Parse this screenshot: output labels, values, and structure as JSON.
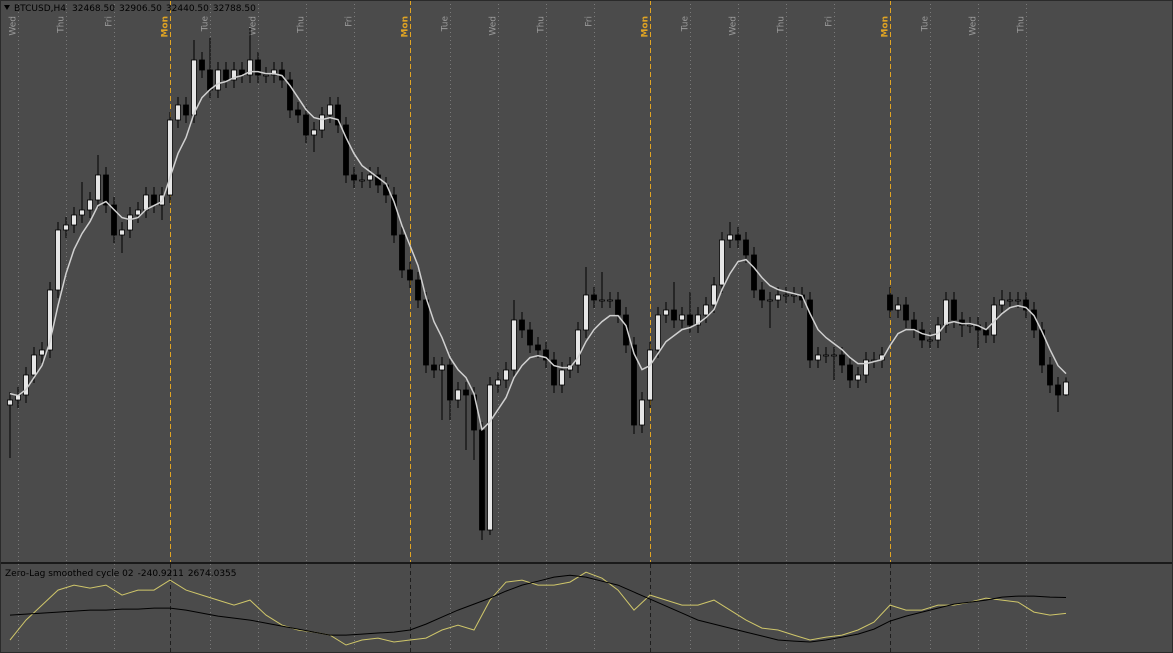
{
  "chart_data": [
    {
      "type": "candlestick",
      "title": "BTCUSD,H4",
      "ohlc_value_labels": [
        "32468.50",
        "32906.50",
        "32440.50",
        "32788.50"
      ],
      "up_color": "#e6e6e6",
      "down_color": "#000000",
      "ma_color": "#d0d0d0",
      "ylim": [
        28290,
        42340
      ],
      "xticks": [
        {
          "value": 1,
          "label": "Wed"
        },
        {
          "value": 7,
          "label": "Thu"
        },
        {
          "value": 13,
          "label": "Fri"
        },
        {
          "value": 20,
          "label": "Mon"
        },
        {
          "value": 25,
          "label": "Tue"
        },
        {
          "value": 31,
          "label": "Wed"
        },
        {
          "value": 37,
          "label": "Thu"
        },
        {
          "value": 43,
          "label": "Fri"
        },
        {
          "value": 50,
          "label": "Mon"
        },
        {
          "value": 55,
          "label": "Tue"
        },
        {
          "value": 61,
          "label": "Wed"
        },
        {
          "value": 67,
          "label": "Thu"
        },
        {
          "value": 73,
          "label": "Fri"
        },
        {
          "value": 80,
          "label": "Mon"
        },
        {
          "value": 85,
          "label": "Tue"
        },
        {
          "value": 91,
          "label": "Wed"
        },
        {
          "value": 97,
          "label": "Thu"
        },
        {
          "value": 103,
          "label": "Fri"
        },
        {
          "value": 110,
          "label": "Mon"
        },
        {
          "value": 115,
          "label": "Tue"
        },
        {
          "value": 121,
          "label": "Wed"
        },
        {
          "value": 127,
          "label": "Thu"
        }
      ],
      "week_start_label": "Mon",
      "week_start_color": "#e0a424",
      "grid_color": "#7a7a7a",
      "label_color": "#9a9a9a",
      "open": [
        32215,
        32340,
        32465,
        32965,
        33465,
        33590,
        35090,
        36590,
        36715,
        36965,
        37090,
        37340,
        37965,
        37215,
        36465,
        36590,
        36965,
        37090,
        37465,
        37215,
        37465,
        39340,
        39715,
        39465,
        40840,
        40590,
        40090,
        40590,
        40340,
        40590,
        40465,
        40840,
        40465,
        40465,
        40590,
        40340,
        39590,
        39465,
        38965,
        39090,
        39465,
        39715,
        39215,
        37965,
        37840,
        37840,
        37965,
        37715,
        37465,
        36465,
        35590,
        35340,
        34840,
        33215,
        33090,
        33215,
        32340,
        32590,
        32465,
        31590,
        29090,
        32715,
        32840,
        33090,
        34340,
        34090,
        33715,
        33590,
        33340,
        32715,
        33090,
        33215,
        34090,
        34965,
        34840,
        34840,
        34840,
        34465,
        33715,
        31715,
        32340,
        33590,
        34465,
        34590,
        34340,
        34465,
        34215,
        34465,
        34715,
        35215,
        36340,
        36465,
        36340,
        35965,
        35090,
        34840,
        34840,
        34965,
        34965,
        34965,
        34840,
        33340,
        33465,
        33465,
        33465,
        33215,
        32840,
        32965,
        33340,
        33340,
        34965,
        34590,
        34715,
        34340,
        34090,
        33840,
        33840,
        34215,
        34840,
        34340,
        34215,
        34215,
        34090,
        33965,
        34715,
        34840,
        34840,
        34840,
        34590,
        34090,
        33215,
        32715,
        32468.5
      ],
      "high": [
        32540,
        32665,
        33165,
        33665,
        33790,
        35290,
        36790,
        36915,
        37165,
        37790,
        37540,
        38465,
        38165,
        37415,
        36790,
        37165,
        37290,
        37665,
        37665,
        37665,
        39540,
        39915,
        39915,
        41340,
        41040,
        41390,
        40790,
        40790,
        40790,
        40790,
        41640,
        41040,
        40665,
        40790,
        40790,
        40540,
        39790,
        39665,
        39290,
        39665,
        39915,
        39915,
        39415,
        38165,
        38040,
        38165,
        38165,
        37915,
        37665,
        36665,
        35790,
        35540,
        35040,
        33415,
        33415,
        33415,
        32790,
        32790,
        32665,
        31790,
        32915,
        33040,
        33290,
        34840,
        34540,
        34290,
        33915,
        33790,
        33540,
        33290,
        33415,
        34290,
        35665,
        35165,
        35540,
        35040,
        35040,
        34665,
        33915,
        32540,
        33790,
        34665,
        34790,
        35290,
        34665,
        35040,
        34665,
        34915,
        35415,
        36540,
        36790,
        36665,
        36540,
        36165,
        35290,
        35040,
        35165,
        35165,
        35165,
        35165,
        35040,
        33665,
        33665,
        33665,
        33665,
        33415,
        33165,
        33540,
        33540,
        33665,
        35165,
        34915,
        34915,
        34540,
        34290,
        34040,
        34415,
        35040,
        35040,
        34540,
        34415,
        34415,
        34290,
        34915,
        35090,
        35040,
        35040,
        35040,
        34790,
        34290,
        33415,
        32915,
        32906.5
      ],
      "low": [
        30890,
        32140,
        32265,
        32765,
        33265,
        33390,
        34890,
        36390,
        36515,
        36765,
        36890,
        37140,
        37015,
        36265,
        36015,
        36390,
        36765,
        36890,
        37015,
        36840,
        37265,
        39140,
        39265,
        39265,
        40390,
        39890,
        39890,
        40140,
        40140,
        40265,
        40265,
        40265,
        40265,
        40265,
        40140,
        39390,
        39265,
        38765,
        38540,
        38890,
        39265,
        39015,
        37765,
        37640,
        37640,
        37640,
        37515,
        37265,
        36265,
        35390,
        35140,
        34640,
        33015,
        32890,
        31840,
        31840,
        32140,
        31090,
        30840,
        28840,
        28965,
        32515,
        32640,
        32890,
        33890,
        33515,
        33390,
        33140,
        32515,
        32515,
        32890,
        33015,
        33890,
        34640,
        34640,
        34640,
        34265,
        33515,
        31490,
        31515,
        32140,
        33390,
        34265,
        34140,
        34140,
        34015,
        34015,
        34265,
        34515,
        35015,
        36140,
        36140,
        35765,
        34890,
        34640,
        34140,
        34640,
        34765,
        34765,
        34640,
        33140,
        33140,
        33265,
        32840,
        33015,
        32640,
        32640,
        32765,
        33140,
        33140,
        34390,
        34390,
        34140,
        33890,
        33640,
        33640,
        33640,
        34015,
        34140,
        33915,
        34015,
        33640,
        33765,
        33765,
        34515,
        34640,
        34640,
        34390,
        33890,
        33015,
        32515,
        32040,
        32440.5
      ],
      "close": [
        32340,
        32465,
        32965,
        33465,
        33590,
        35090,
        36590,
        36715,
        36965,
        37090,
        37340,
        37965,
        37215,
        36465,
        36590,
        36965,
        37090,
        37465,
        37215,
        37465,
        39340,
        39715,
        39465,
        40840,
        40590,
        40090,
        40590,
        40340,
        40590,
        40465,
        40840,
        40465,
        40465,
        40590,
        40340,
        39590,
        39465,
        38965,
        39090,
        39465,
        39715,
        39215,
        37965,
        37840,
        37840,
        37965,
        37715,
        37465,
        36465,
        35590,
        35340,
        34840,
        33215,
        33090,
        33215,
        32340,
        32590,
        32465,
        31590,
        29090,
        32715,
        32840,
        33090,
        34340,
        34090,
        33715,
        33590,
        33340,
        32715,
        33090,
        33215,
        34090,
        34965,
        34840,
        34840,
        34840,
        34465,
        33715,
        31715,
        32340,
        33590,
        34465,
        34590,
        34340,
        34465,
        34215,
        34465,
        34715,
        35215,
        36340,
        36465,
        36340,
        35965,
        35090,
        34840,
        34840,
        34965,
        34965,
        34965,
        34840,
        33340,
        33465,
        33465,
        33465,
        33215,
        32840,
        32965,
        33340,
        33340,
        33465,
        34590,
        34715,
        34340,
        34090,
        33840,
        33840,
        34215,
        34840,
        34340,
        34215,
        34215,
        34090,
        33965,
        34715,
        34840,
        34840,
        34840,
        34590,
        34090,
        33215,
        32715,
        32465,
        32788.5
      ],
      "ma_values": [
        32500,
        32450,
        32600,
        32900,
        33200,
        33800,
        34700,
        35500,
        36100,
        36500,
        36800,
        37200,
        37300,
        37100,
        36900,
        36850,
        36900,
        37100,
        37200,
        37300,
        37900,
        38500,
        38900,
        39500,
        39900,
        40100,
        40250,
        40300,
        40400,
        40450,
        40550,
        40550,
        40500,
        40500,
        40450,
        40200,
        39900,
        39600,
        39400,
        39350,
        39400,
        39350,
        38900,
        38500,
        38200,
        38050,
        37900,
        37750,
        37300,
        36700,
        36200,
        35700,
        34900,
        34300,
        33900,
        33400,
        33100,
        32900,
        32500,
        31600,
        31800,
        32100,
        32400,
        32900,
        33200,
        33400,
        33450,
        33400,
        33200,
        33150,
        33150,
        33400,
        33800,
        34100,
        34300,
        34450,
        34450,
        34200,
        33500,
        33100,
        33200,
        33500,
        33800,
        33950,
        34100,
        34150,
        34250,
        34400,
        34600,
        35100,
        35500,
        35800,
        35850,
        35650,
        35400,
        35200,
        35100,
        35050,
        35000,
        34950,
        34500,
        34100,
        33900,
        33750,
        33600,
        33400,
        33250,
        33250,
        33300,
        33350,
        33700,
        34000,
        34100,
        34100,
        34000,
        33950,
        34000,
        34250,
        34300,
        34250,
        34250,
        34200,
        34100,
        34300,
        34500,
        34650,
        34700,
        34650,
        34450,
        34050,
        33600,
        33200,
        33000
      ]
    },
    {
      "type": "line",
      "title": "Zero-Lag smoothed cycle 02",
      "ylim": [
        -7500,
        9000
      ],
      "x": [
        0,
        2,
        4,
        6,
        8,
        10,
        12,
        14,
        16,
        18,
        20,
        22,
        24,
        26,
        28,
        30,
        32,
        34,
        36,
        38,
        40,
        42,
        44,
        46,
        48,
        50,
        52,
        54,
        56,
        58,
        60,
        62,
        64,
        66,
        68,
        70,
        72,
        74,
        76,
        78,
        80,
        82,
        84,
        86,
        88,
        90,
        92,
        94,
        96,
        98,
        100,
        102,
        104,
        106,
        108,
        110,
        112,
        114,
        116,
        118,
        120,
        122,
        124,
        126,
        128,
        130,
        132
      ],
      "series": [
        {
          "color": "#cfc66a",
          "values": [
            -5120,
            -1460,
            1280,
            4030,
            4940,
            4390,
            4940,
            3110,
            4030,
            4030,
            5860,
            4030,
            3110,
            2200,
            1280,
            2200,
            -550,
            -2380,
            -3290,
            -3660,
            -4210,
            -6040,
            -5120,
            -4760,
            -5490,
            -5120,
            -4760,
            -3290,
            -2380,
            -3290,
            2200,
            5490,
            5860,
            4940,
            4940,
            5490,
            7320,
            6220,
            4030,
            370,
            3110,
            2200,
            1280,
            1280,
            2200,
            370,
            -1460,
            -2930,
            -3290,
            -4210,
            -5120,
            -4580,
            -4210,
            -3290,
            -1830,
            1280,
            370,
            370,
            1280,
            1280,
            1830,
            2560,
            2200,
            1830,
            0,
            -550,
            -240.9211
          ]
        },
        {
          "color": "#000000",
          "values": [
            -550,
            -370,
            -180,
            0,
            180,
            370,
            370,
            550,
            550,
            730,
            730,
            370,
            -180,
            -730,
            -1100,
            -1460,
            -2010,
            -2560,
            -3110,
            -3660,
            -4210,
            -4210,
            -4030,
            -3840,
            -3660,
            -3290,
            -2200,
            -920,
            370,
            1460,
            2560,
            3840,
            4940,
            5670,
            6410,
            6770,
            6410,
            5670,
            4940,
            3660,
            2380,
            1100,
            -180,
            -1460,
            -2200,
            -2930,
            -3660,
            -4390,
            -5120,
            -5310,
            -5490,
            -5120,
            -4580,
            -4030,
            -3110,
            -1650,
            -730,
            0,
            730,
            1460,
            1830,
            2200,
            2750,
            2930,
            2930,
            2750,
            2674.0355
          ]
        }
      ]
    }
  ]
}
